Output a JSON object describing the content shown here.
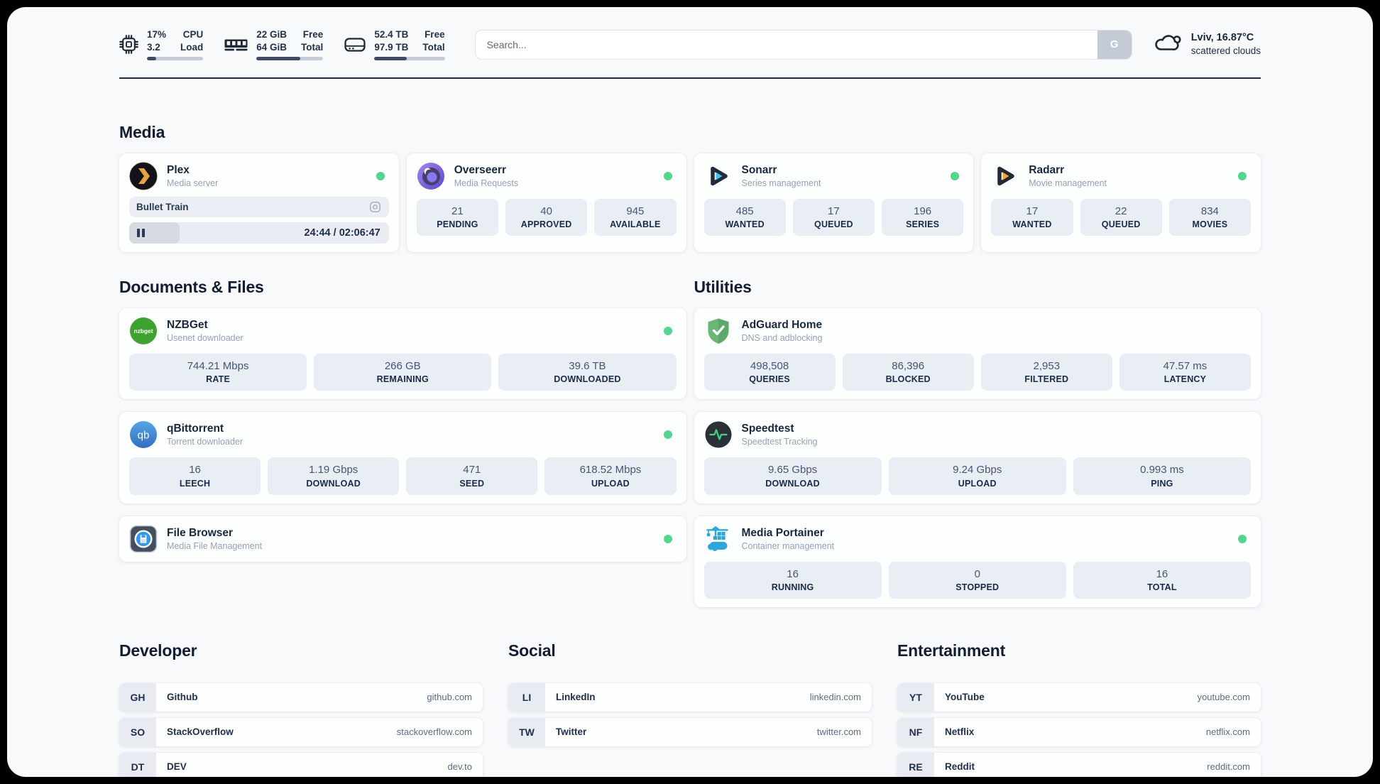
{
  "colors": {
    "accent_dark": "#242c3c",
    "status_online": "#4fd88c",
    "stat_box_bg": "#e9edf4",
    "panel_bg": "#f7f9fb"
  },
  "header": {
    "metrics": {
      "cpu": {
        "icon": "cpu-icon",
        "v1": "17%",
        "v2": "3.2",
        "l1": "CPU",
        "l2": "Load",
        "progress": 17
      },
      "ram": {
        "icon": "ram-icon",
        "v1": "22 GiB",
        "v2": "64 GiB",
        "l1": "Free",
        "l2": "Total",
        "progress": 66
      },
      "disk": {
        "icon": "disk-icon",
        "v1": "52.4 TB",
        "v2": "97.9 TB",
        "l1": "Free",
        "l2": "Total",
        "progress": 46
      }
    },
    "search": {
      "placeholder": "Search...",
      "button_label": "G"
    },
    "weather": {
      "icon": "cloud-icon",
      "location": "Lviv, 16.87°C",
      "condition": "scattered clouds"
    }
  },
  "sections": {
    "media": {
      "title": "Media"
    },
    "documents": {
      "title": "Documents & Files"
    },
    "utilities": {
      "title": "Utilities"
    },
    "developer": {
      "title": "Developer"
    },
    "social": {
      "title": "Social"
    },
    "entertainment": {
      "title": "Entertainment"
    }
  },
  "apps": {
    "plex": {
      "name": "Plex",
      "subtitle": "Media server",
      "icon": "plex-icon",
      "icon_chevron": "plex-chevron",
      "player": {
        "title": "Bullet Train",
        "time": "24:44 / 02:06:47",
        "progress": 19.5
      }
    },
    "overseerr": {
      "name": "Overseerr",
      "subtitle": "Media Requests",
      "icon": "overseerr-icon",
      "stats": [
        {
          "value": "21",
          "label": "PENDING"
        },
        {
          "value": "40",
          "label": "APPROVED"
        },
        {
          "value": "945",
          "label": "AVAILABLE"
        }
      ]
    },
    "sonarr": {
      "name": "Sonarr",
      "subtitle": "Series management",
      "icon": "sonarr-icon",
      "stats": [
        {
          "value": "485",
          "label": "WANTED"
        },
        {
          "value": "17",
          "label": "QUEUED"
        },
        {
          "value": "196",
          "label": "SERIES"
        }
      ]
    },
    "radarr": {
      "name": "Radarr",
      "subtitle": "Movie management",
      "icon": "radarr-icon",
      "stats": [
        {
          "value": "17",
          "label": "WANTED"
        },
        {
          "value": "22",
          "label": "QUEUED"
        },
        {
          "value": "834",
          "label": "MOVIES"
        }
      ]
    },
    "nzbget": {
      "name": "NZBGet",
      "subtitle": "Usenet downloader",
      "icon": "nzbget-icon",
      "icon_text": "nzbget",
      "stats": [
        {
          "value": "744.21 Mbps",
          "label": "RATE"
        },
        {
          "value": "266 GB",
          "label": "REMAINING"
        },
        {
          "value": "39.6 TB",
          "label": "DOWNLOADED"
        }
      ]
    },
    "qbittorrent": {
      "name": "qBittorrent",
      "subtitle": "Torrent downloader",
      "icon": "qbittorrent-icon",
      "icon_text": "qb",
      "stats": [
        {
          "value": "16",
          "label": "LEECH"
        },
        {
          "value": "1.19 Gbps",
          "label": "DOWNLOAD"
        },
        {
          "value": "471",
          "label": "SEED"
        },
        {
          "value": "618.52 Mbps",
          "label": "UPLOAD"
        }
      ]
    },
    "filebrowser": {
      "name": "File Browser",
      "subtitle": "Media File Management",
      "icon": "filebrowser-icon"
    },
    "adguard": {
      "name": "AdGuard Home",
      "subtitle": "DNS and adblocking",
      "icon": "adguard-icon",
      "stats": [
        {
          "value": "498,508",
          "label": "QUERIES"
        },
        {
          "value": "86,396",
          "label": "BLOCKED"
        },
        {
          "value": "2,953",
          "label": "FILTERED"
        },
        {
          "value": "47.57 ms",
          "label": "LATENCY"
        }
      ]
    },
    "speedtest": {
      "name": "Speedtest",
      "subtitle": "Speedtest Tracking",
      "icon": "speedtest-icon",
      "stats": [
        {
          "value": "9.65 Gbps",
          "label": "DOWNLOAD"
        },
        {
          "value": "9.24 Gbps",
          "label": "UPLOAD"
        },
        {
          "value": "0.993 ms",
          "label": "PING"
        }
      ]
    },
    "portainer": {
      "name": "Media Portainer",
      "subtitle": "Container management",
      "icon": "portainer-icon",
      "stats": [
        {
          "value": "16",
          "label": "RUNNING"
        },
        {
          "value": "0",
          "label": "STOPPED"
        },
        {
          "value": "16",
          "label": "TOTAL"
        }
      ]
    }
  },
  "links": {
    "developer": [
      {
        "abbr": "GH",
        "name": "Github",
        "url": "github.com"
      },
      {
        "abbr": "SO",
        "name": "StackOverflow",
        "url": "stackoverflow.com"
      },
      {
        "abbr": "DT",
        "name": "DEV",
        "url": "dev.to"
      }
    ],
    "social": [
      {
        "abbr": "LI",
        "name": "LinkedIn",
        "url": "linkedin.com"
      },
      {
        "abbr": "TW",
        "name": "Twitter",
        "url": "twitter.com"
      }
    ],
    "entertainment": [
      {
        "abbr": "YT",
        "name": "YouTube",
        "url": "youtube.com"
      },
      {
        "abbr": "NF",
        "name": "Netflix",
        "url": "netflix.com"
      },
      {
        "abbr": "RE",
        "name": "Reddit",
        "url": "reddit.com"
      }
    ]
  }
}
